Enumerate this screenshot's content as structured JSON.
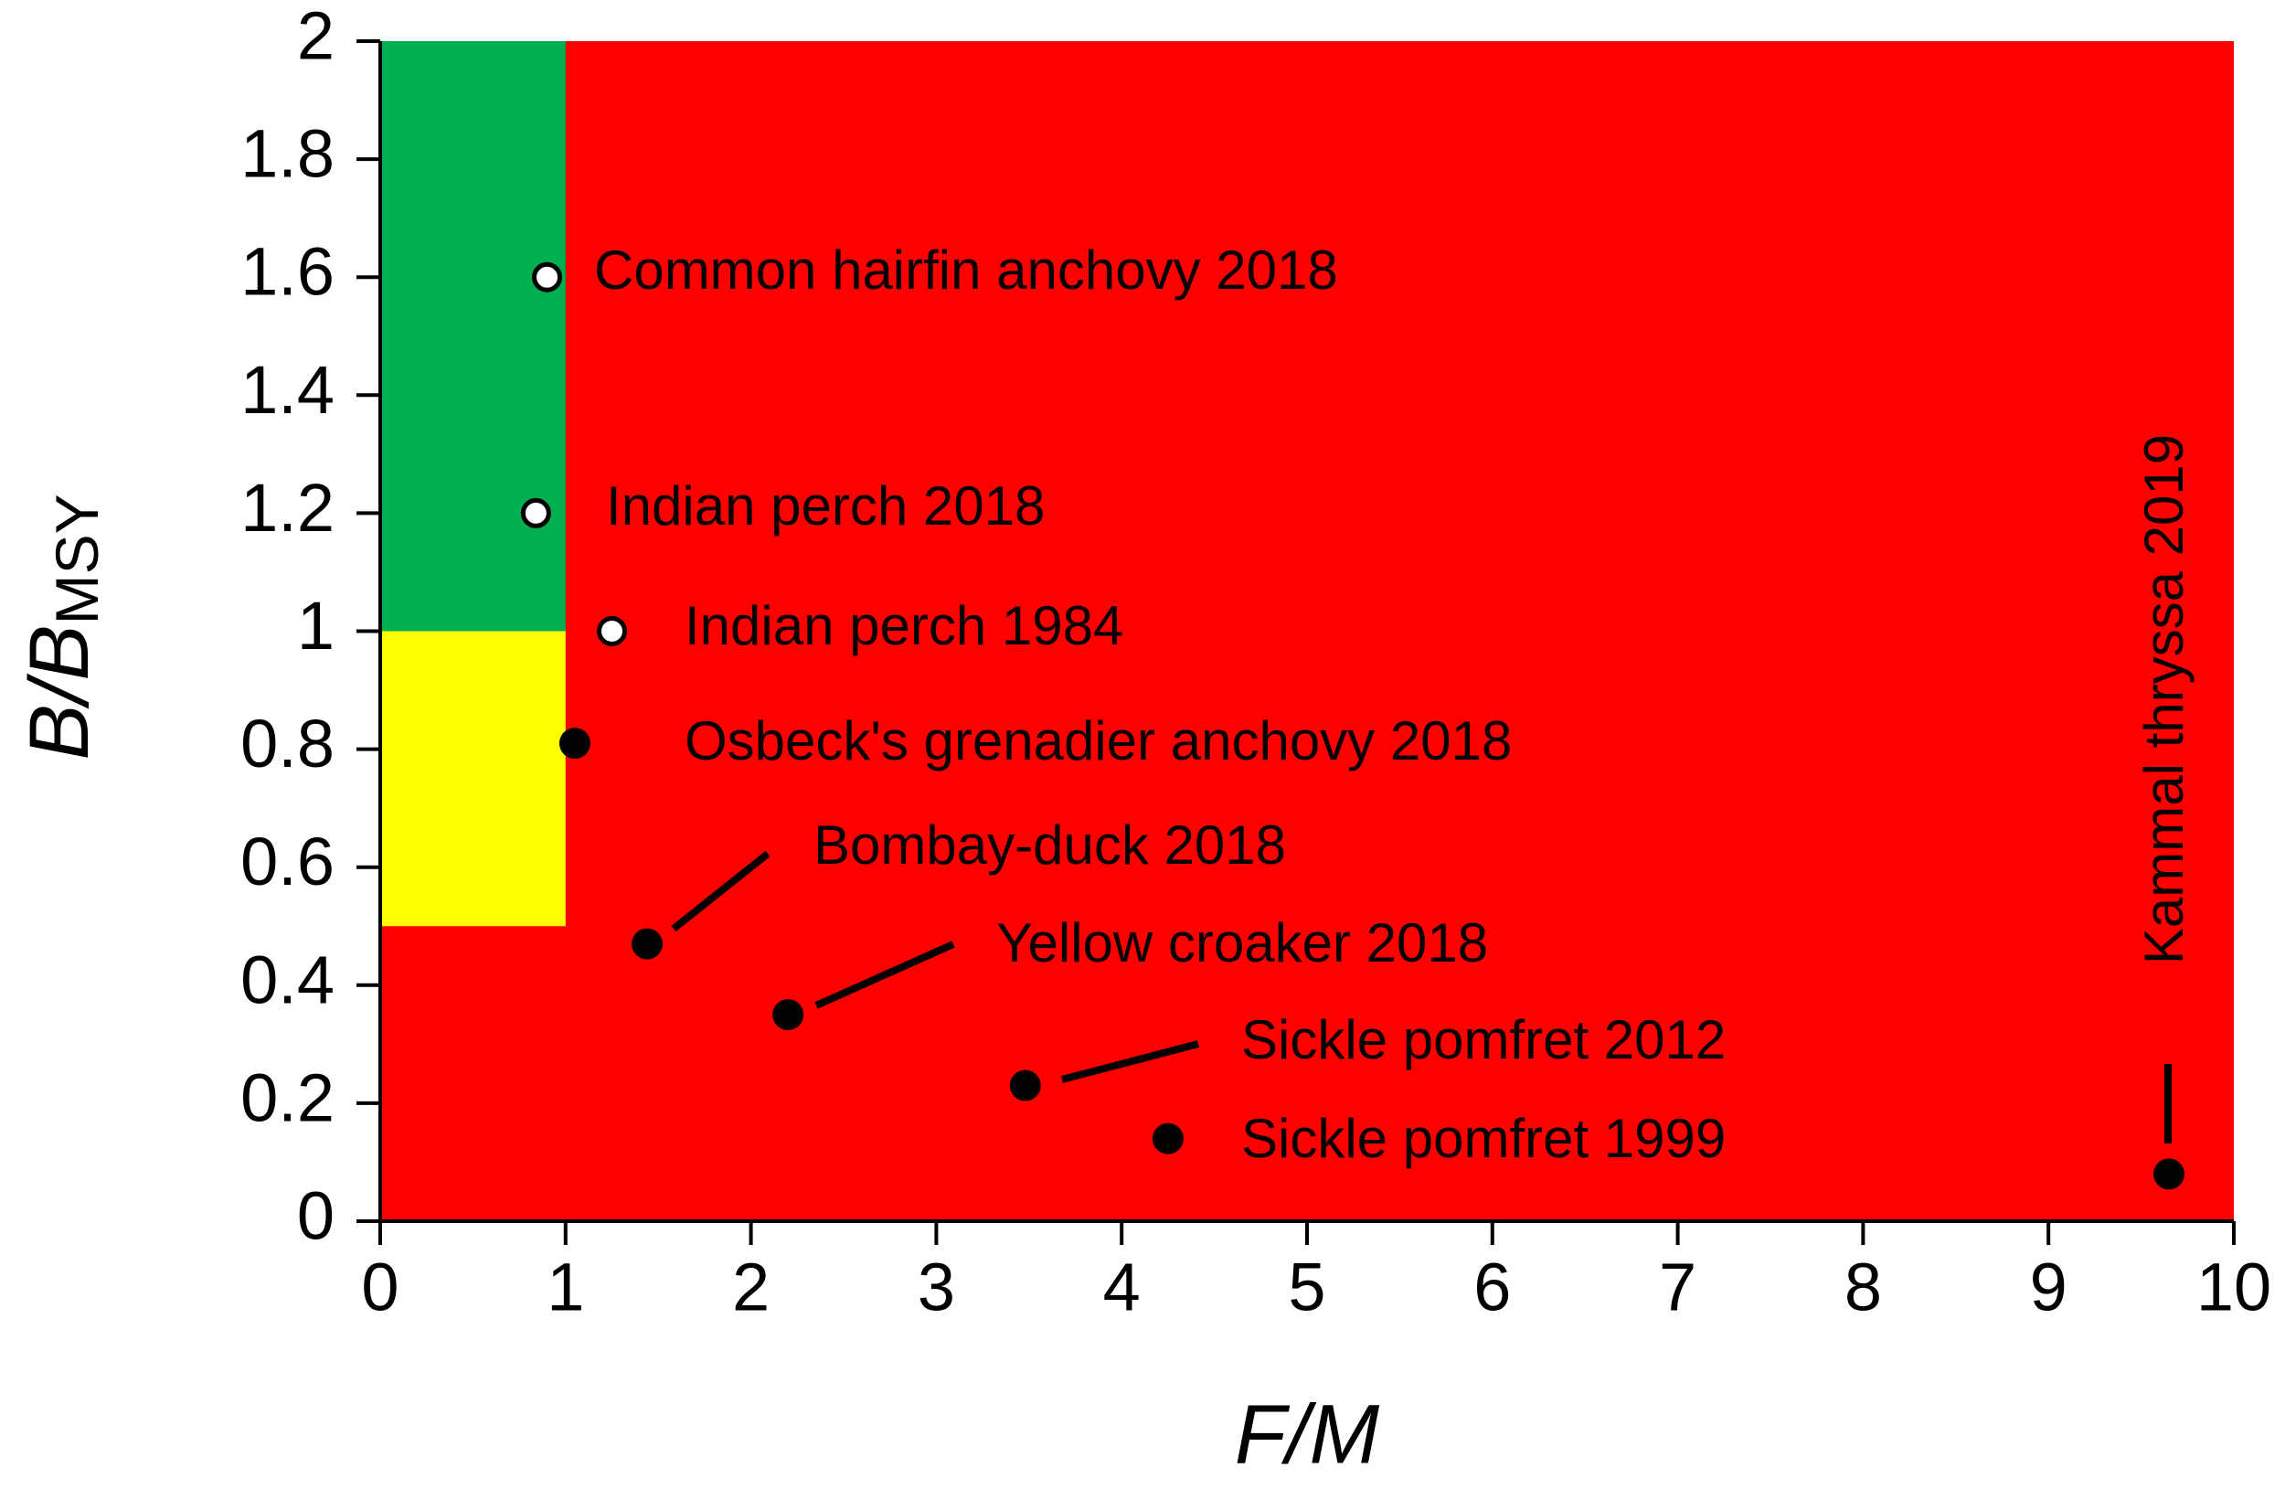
{
  "chart_data": {
    "type": "scatter",
    "x_label": "F/M",
    "y_label": {
      "main": "B/B",
      "sub": "MSY"
    },
    "xlim": [
      0,
      10
    ],
    "ylim": [
      0,
      2
    ],
    "xticks": [
      0,
      1,
      2,
      3,
      4,
      5,
      6,
      7,
      8,
      9,
      10
    ],
    "yticks": [
      0,
      0.2,
      0.4,
      0.6,
      0.8,
      1,
      1.2,
      1.4,
      1.6,
      1.8,
      2
    ],
    "background_color": "#ff0000",
    "zones": [
      {
        "xlim": [
          0,
          1
        ],
        "ylim": [
          1,
          2
        ],
        "color": "#00b050"
      },
      {
        "xlim": [
          0,
          1
        ],
        "ylim": [
          0.5,
          1
        ],
        "color": "#ffff00"
      }
    ],
    "points": [
      {
        "label": "Common hairfin anchovy 2018",
        "x": 0.9,
        "y": 1.6,
        "marker": "open"
      },
      {
        "label": "Indian perch 2018",
        "x": 0.84,
        "y": 1.2,
        "marker": "open"
      },
      {
        "label": "Indian perch 1984",
        "x": 1.25,
        "y": 1.0,
        "marker": "open"
      },
      {
        "label": "Osbeck's grenadier anchovy 2018",
        "x": 1.05,
        "y": 0.81,
        "marker": "filled"
      },
      {
        "label": "Bombay-duck 2018",
        "x": 1.44,
        "y": 0.47,
        "marker": "filled"
      },
      {
        "label": "Yellow croaker 2018",
        "x": 2.2,
        "y": 0.35,
        "marker": "filled"
      },
      {
        "label": "Sickle pomfret 2012",
        "x": 3.48,
        "y": 0.23,
        "marker": "filled"
      },
      {
        "label": "Sickle pomfret 1999",
        "x": 4.25,
        "y": 0.14,
        "marker": "filled"
      },
      {
        "label": "Kammal thryssa 2019",
        "x": 9.65,
        "y": 0.08,
        "marker": "filled"
      }
    ]
  }
}
